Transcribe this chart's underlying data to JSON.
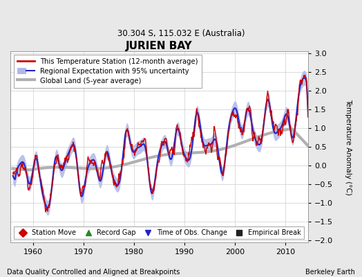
{
  "title": "JURIEN BAY",
  "subtitle": "30.304 S, 115.032 E (Australia)",
  "ylabel": "Temperature Anomaly (°C)",
  "footer_left": "Data Quality Controlled and Aligned at Breakpoints",
  "footer_right": "Berkeley Earth",
  "xlim": [
    1955.5,
    2014.5
  ],
  "ylim": [
    -2.05,
    3.05
  ],
  "yticks": [
    -2,
    -1.5,
    -1,
    -0.5,
    0,
    0.5,
    1,
    1.5,
    2,
    2.5,
    3
  ],
  "xticks": [
    1960,
    1970,
    1980,
    1990,
    2000,
    2010
  ],
  "bg_color": "#e8e8e8",
  "plot_bg_color": "#ffffff",
  "station_color": "#cc0000",
  "regional_color": "#2222cc",
  "uncertainty_color": "#b0b8e8",
  "global_color": "#b0b0b0",
  "legend_entries": [
    "This Temperature Station (12-month average)",
    "Regional Expectation with 95% uncertainty",
    "Global Land (5-year average)"
  ],
  "marker_legend": [
    {
      "marker": "D",
      "color": "#cc0000",
      "label": "Station Move"
    },
    {
      "marker": "^",
      "color": "#228B22",
      "label": "Record Gap"
    },
    {
      "marker": "v",
      "color": "#2222cc",
      "label": "Time of Obs. Change"
    },
    {
      "marker": "s",
      "color": "#222222",
      "label": "Empirical Break"
    }
  ],
  "seed": 42
}
